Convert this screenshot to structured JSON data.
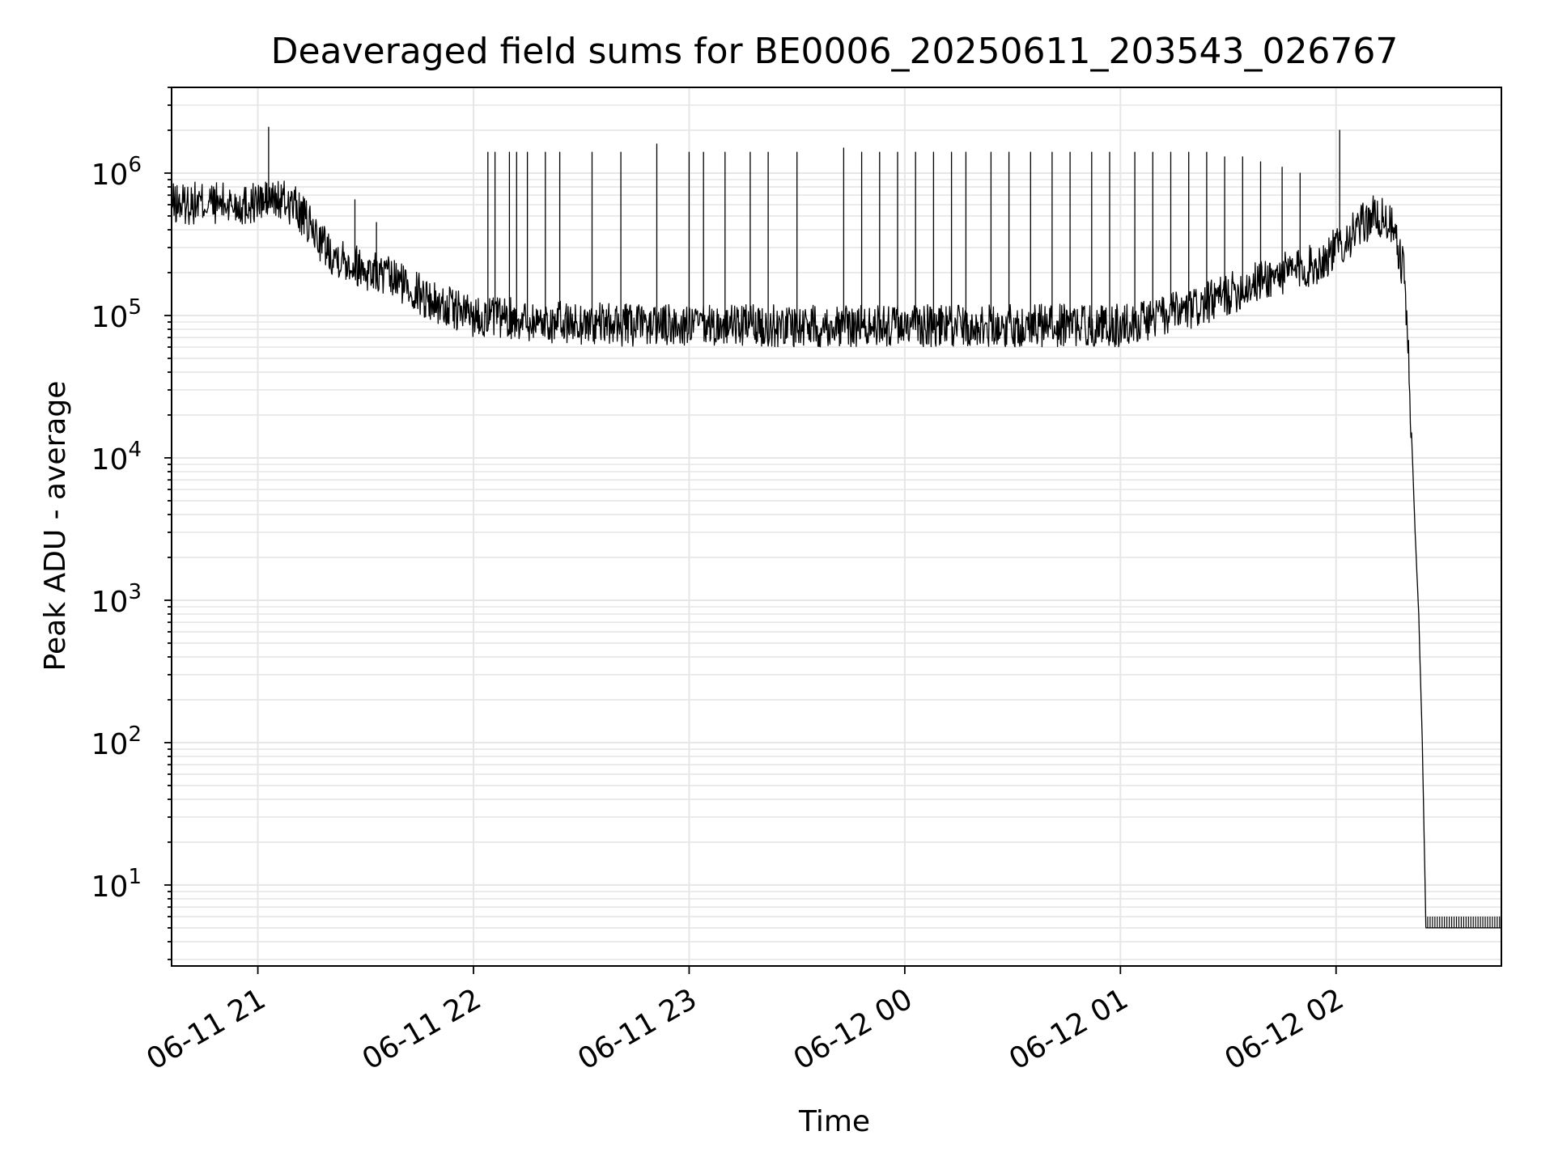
{
  "chart_data": {
    "type": "line",
    "title": "Deaveraged field sums for BE0006_20250611_203543_026767",
    "xlabel": "Time",
    "ylabel": "Peak ADU - average",
    "yscale": "log",
    "ylim": [
      2.7,
      4000000
    ],
    "xlim": [
      "2025-06-11 20:36",
      "2025-06-12 02:46"
    ],
    "grid": true,
    "line_color": "#000000",
    "grid_color": "#e6e6e6",
    "xticks": [
      {
        "t": "2025-06-11 21:00",
        "label": "06-11 21"
      },
      {
        "t": "2025-06-11 22:00",
        "label": "06-11 22"
      },
      {
        "t": "2025-06-11 23:00",
        "label": "06-11 23"
      },
      {
        "t": "2025-06-12 00:00",
        "label": "06-12 00"
      },
      {
        "t": "2025-06-12 01:00",
        "label": "06-12 01"
      },
      {
        "t": "2025-06-12 02:00",
        "label": "06-12 02"
      }
    ],
    "yticks": [
      {
        "value": 10,
        "base": "10",
        "exp": "1"
      },
      {
        "value": 100,
        "base": "10",
        "exp": "2"
      },
      {
        "value": 1000,
        "base": "10",
        "exp": "3"
      },
      {
        "value": 10000,
        "base": "10",
        "exp": "4"
      },
      {
        "value": 100000,
        "base": "10",
        "exp": "5"
      },
      {
        "value": 1000000,
        "base": "10",
        "exp": "6"
      }
    ],
    "series": [
      {
        "points": [
          [
            "2025-06-11 20:36",
            600000
          ],
          [
            "2025-06-11 20:45",
            620000
          ],
          [
            "2025-06-11 20:55",
            600000
          ],
          [
            "2025-06-11 21:05",
            650000
          ],
          [
            "2025-06-11 21:10",
            600000
          ],
          [
            "2025-06-11 21:15",
            400000
          ],
          [
            "2025-06-11 21:20",
            280000
          ],
          [
            "2025-06-11 21:30",
            210000
          ],
          [
            "2025-06-11 21:40",
            170000
          ],
          [
            "2025-06-11 21:50",
            120000
          ],
          [
            "2025-06-11 22:00",
            100000
          ],
          [
            "2025-06-11 22:20",
            90000
          ],
          [
            "2025-06-11 22:45",
            85000
          ],
          [
            "2025-06-11 23:00",
            85000
          ],
          [
            "2025-06-11 23:30",
            85000
          ],
          [
            "2025-06-12 00:00",
            85000
          ],
          [
            "2025-06-12 00:30",
            85000
          ],
          [
            "2025-06-12 01:00",
            85000
          ],
          [
            "2025-06-12 01:20",
            110000
          ],
          [
            "2025-06-12 01:40",
            180000
          ],
          [
            "2025-06-12 01:55",
            230000
          ],
          [
            "2025-06-12 02:05",
            380000
          ],
          [
            "2025-06-12 02:10",
            500000
          ],
          [
            "2025-06-12 02:15",
            450000
          ],
          [
            "2025-06-12 02:17",
            300000
          ],
          [
            "2025-06-12 02:19",
            200000
          ],
          [
            "2025-06-12 02:20",
            60000
          ],
          [
            "2025-06-12 02:21",
            15000
          ],
          [
            "2025-06-12 02:22",
            3000
          ],
          [
            "2025-06-12 02:23",
            800
          ],
          [
            "2025-06-12 02:24",
            100
          ],
          [
            "2025-06-12 02:25",
            5
          ],
          [
            "2025-06-12 02:46",
            5
          ]
        ],
        "spikes": [
          [
            "2025-06-11 21:03",
            2100000
          ],
          [
            "2025-06-11 21:27",
            650000
          ],
          [
            "2025-06-11 21:33",
            450000
          ],
          [
            "2025-06-11 22:04",
            1400000
          ],
          [
            "2025-06-11 22:06",
            1400000
          ],
          [
            "2025-06-11 22:10",
            1400000
          ],
          [
            "2025-06-11 22:12",
            1400000
          ],
          [
            "2025-06-11 22:15",
            1400000
          ],
          [
            "2025-06-11 22:20",
            1400000
          ],
          [
            "2025-06-11 22:24",
            1400000
          ],
          [
            "2025-06-11 22:33",
            1400000
          ],
          [
            "2025-06-11 22:41",
            1400000
          ],
          [
            "2025-06-11 22:51",
            1600000
          ],
          [
            "2025-06-11 23:00",
            1400000
          ],
          [
            "2025-06-11 23:04",
            1400000
          ],
          [
            "2025-06-11 23:10",
            1400000
          ],
          [
            "2025-06-11 23:17",
            1400000
          ],
          [
            "2025-06-11 23:22",
            1400000
          ],
          [
            "2025-06-11 23:30",
            1400000
          ],
          [
            "2025-06-11 23:43",
            1500000
          ],
          [
            "2025-06-11 23:48",
            1400000
          ],
          [
            "2025-06-11 23:53",
            1400000
          ],
          [
            "2025-06-11 23:58",
            1400000
          ],
          [
            "2025-06-12 00:03",
            1400000
          ],
          [
            "2025-06-12 00:08",
            1400000
          ],
          [
            "2025-06-12 00:13",
            1400000
          ],
          [
            "2025-06-12 00:17",
            1400000
          ],
          [
            "2025-06-12 00:24",
            1400000
          ],
          [
            "2025-06-12 00:29",
            1400000
          ],
          [
            "2025-06-12 00:35",
            1400000
          ],
          [
            "2025-06-12 00:41",
            1400000
          ],
          [
            "2025-06-12 00:46",
            1400000
          ],
          [
            "2025-06-12 00:52",
            1400000
          ],
          [
            "2025-06-12 00:57",
            1400000
          ],
          [
            "2025-06-12 01:04",
            1400000
          ],
          [
            "2025-06-12 01:09",
            1400000
          ],
          [
            "2025-06-12 01:14",
            1400000
          ],
          [
            "2025-06-12 01:19",
            1400000
          ],
          [
            "2025-06-12 01:24",
            1400000
          ],
          [
            "2025-06-12 01:29",
            1300000
          ],
          [
            "2025-06-12 01:34",
            1300000
          ],
          [
            "2025-06-12 01:39",
            1200000
          ],
          [
            "2025-06-12 01:45",
            1100000
          ],
          [
            "2025-06-12 01:50",
            1000000
          ],
          [
            "2025-06-12 02:01",
            2000000
          ]
        ]
      }
    ]
  }
}
